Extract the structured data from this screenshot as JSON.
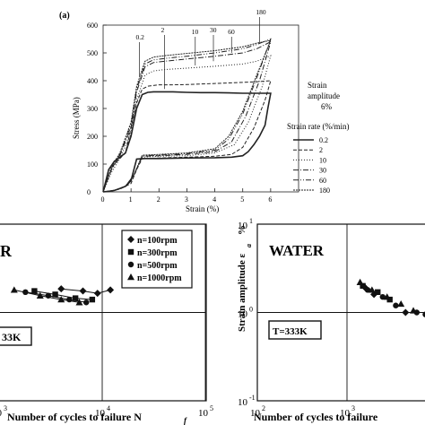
{
  "panel_a_label": "(a)",
  "chart_data": [
    {
      "type": "line",
      "id": "hysteresis",
      "xlabel": "Strain (%)",
      "ylabel": "Stress (MPa)",
      "xlim": [
        0,
        7
      ],
      "ylim": [
        0,
        600
      ],
      "xticks": [
        0,
        1,
        2,
        3,
        4,
        5,
        6
      ],
      "yticks": [
        0,
        100,
        200,
        300,
        400,
        500,
        600
      ],
      "annotation_lines": [
        "Strain",
        "amplitude",
        "6%"
      ],
      "legend_title": "Strain rate (%/min)",
      "legend_position": "right",
      "top_labels": [
        "0.2",
        "2",
        "10",
        "30",
        "60",
        "180"
      ],
      "series": [
        {
          "name": "0.2",
          "dash": "",
          "width": 1.6,
          "x": [
            0,
            0.1,
            0.2,
            0.4,
            0.6,
            0.8,
            1.0,
            1.2,
            1.4,
            1.6,
            1.8,
            2.0,
            2.5,
            3.0,
            3.5,
            4.0,
            4.5,
            5.0,
            5.5,
            6.0,
            5.9,
            5.8,
            5.6,
            5.4,
            5.2,
            5.0,
            4.6,
            4.0,
            3.0,
            2.0,
            1.5,
            1.2,
            1.1,
            1.0,
            0.8,
            0.6,
            0.4,
            0.2,
            0.1,
            0
          ],
          "y": [
            0,
            40,
            80,
            110,
            125,
            140,
            200,
            300,
            350,
            358,
            360,
            360,
            360,
            358,
            357,
            357,
            356,
            355,
            355,
            355,
            300,
            240,
            200,
            170,
            145,
            130,
            125,
            123,
            122,
            120,
            120,
            118,
            80,
            40,
            20,
            12,
            5,
            2,
            1,
            0
          ]
        },
        {
          "name": "2",
          "dash": "4,2",
          "width": 1,
          "x": [
            0,
            0.2,
            0.4,
            0.6,
            0.8,
            1.0,
            1.2,
            1.4,
            1.6,
            2.0,
            2.5,
            3.0,
            3.5,
            4.0,
            4.5,
            5.0,
            5.5,
            6.0,
            5.8,
            5.4,
            5.0,
            4.6,
            4.0,
            3.0,
            2.0,
            1.4,
            1.2,
            1.0,
            0.6,
            0.2,
            0
          ],
          "y": [
            0,
            60,
            100,
            120,
            140,
            230,
            320,
            370,
            380,
            385,
            385,
            386,
            388,
            390,
            392,
            394,
            396,
            400,
            330,
            230,
            160,
            135,
            128,
            125,
            122,
            120,
            80,
            30,
            10,
            2,
            0
          ]
        },
        {
          "name": "10",
          "dash": "1,2",
          "width": 1,
          "x": [
            0,
            0.3,
            0.6,
            1.0,
            1.2,
            1.5,
            1.8,
            2.2,
            3.0,
            4.0,
            5.0,
            5.5,
            6.0,
            5.7,
            5.2,
            4.7,
            4.0,
            3.0,
            2.0,
            1.4,
            1.1,
            0.8,
            0.4,
            0
          ],
          "y": [
            0,
            70,
            120,
            210,
            330,
            420,
            435,
            440,
            445,
            452,
            460,
            470,
            490,
            380,
            250,
            170,
            140,
            130,
            128,
            125,
            60,
            20,
            5,
            0
          ]
        },
        {
          "name": "30",
          "dash": "6,2,1,2",
          "width": 1,
          "x": [
            0,
            0.3,
            0.6,
            1.0,
            1.2,
            1.5,
            1.8,
            2.2,
            3.0,
            4.0,
            5.0,
            5.5,
            6.0,
            5.6,
            5.1,
            4.6,
            4.0,
            3.0,
            2.0,
            1.4,
            1.1,
            0.8,
            0.4,
            0
          ],
          "y": [
            0,
            80,
            130,
            230,
            360,
            450,
            465,
            470,
            478,
            488,
            500,
            515,
            540,
            400,
            270,
            180,
            145,
            135,
            130,
            128,
            60,
            20,
            5,
            0
          ]
        },
        {
          "name": "60",
          "dash": "6,2,1,2,1,2",
          "width": 1,
          "x": [
            0,
            0.3,
            0.6,
            1.0,
            1.2,
            1.5,
            1.8,
            2.2,
            3.0,
            4.0,
            5.0,
            5.5,
            6.0,
            5.5,
            5.0,
            4.5,
            4.0,
            3.0,
            2.0,
            1.4,
            1.1,
            0.8,
            0.4,
            0
          ],
          "y": [
            0,
            85,
            135,
            240,
            370,
            460,
            475,
            480,
            488,
            500,
            515,
            530,
            550,
            410,
            280,
            190,
            150,
            138,
            132,
            130,
            60,
            20,
            5,
            0
          ]
        },
        {
          "name": "180",
          "dash": "2,1",
          "width": 1,
          "x": [
            0,
            0.3,
            0.6,
            1.0,
            1.2,
            1.5,
            1.8,
            2.2,
            3.0,
            4.0,
            5.0,
            5.5,
            6.0,
            5.5,
            5.0,
            4.5,
            4.0,
            3.0,
            2.0,
            1.4,
            1.1,
            0.8,
            0.4,
            0
          ],
          "y": [
            0,
            90,
            140,
            250,
            380,
            470,
            485,
            490,
            498,
            508,
            522,
            535,
            545,
            420,
            290,
            200,
            155,
            140,
            135,
            132,
            60,
            20,
            5,
            0
          ]
        }
      ]
    },
    {
      "type": "scatter",
      "id": "sn_rpm",
      "xlabel": "Number of cycles to failure N",
      "xlabel_sub": "f",
      "xscale": "log",
      "xlim": [
        1000,
        100000
      ],
      "yscale": "log",
      "ylim": [
        0.1,
        10
      ],
      "xtick_base": "10",
      "xtick_exps": [
        "3",
        "4",
        "5"
      ],
      "corner_text": "R",
      "box_label": "33K",
      "legend_position": "top-right",
      "series": [
        {
          "name": "n=100rpm",
          "marker": "diamond",
          "x": [
            4000,
            6500,
            9000,
            12000
          ],
          "y": [
            1.85,
            1.75,
            1.65,
            1.8
          ]
        },
        {
          "name": "n=300rpm",
          "marker": "square",
          "x": [
            2200,
            3500,
            5500,
            8000
          ],
          "y": [
            1.75,
            1.6,
            1.45,
            1.4
          ]
        },
        {
          "name": "n=500rpm",
          "marker": "circle",
          "x": [
            1800,
            3000,
            4800,
            7000
          ],
          "y": [
            1.7,
            1.55,
            1.4,
            1.3
          ]
        },
        {
          "name": "n=1000rpm",
          "marker": "triangle",
          "x": [
            1400,
            2500,
            4000,
            6000
          ],
          "y": [
            1.8,
            1.55,
            1.4,
            1.3
          ]
        }
      ]
    },
    {
      "type": "scatter",
      "id": "sn_water",
      "xlabel": "Number of cycles to failure",
      "ylabel": "Strain amplitude ε",
      "ylabel_sub": "a",
      "ylabel_unit": "%",
      "title": "WATER",
      "box_label": "T=333K",
      "xscale": "log",
      "xlim": [
        100,
        10000
      ],
      "yscale": "log",
      "ylim": [
        0.1,
        10
      ],
      "xtick_base": "10",
      "xtick_exps": [
        "2",
        "3"
      ],
      "ytick_base": "10",
      "ytick_exps": [
        "-1",
        "0",
        "1"
      ],
      "series": [
        {
          "name": "diamond",
          "marker": "diamond",
          "x": [
            1600,
            2000,
            4500
          ],
          "y": [
            1.9,
            1.6,
            1.0
          ]
        },
        {
          "name": "square",
          "marker": "square",
          "x": [
            1500,
            2200,
            3000
          ],
          "y": [
            2.0,
            1.7,
            1.4
          ]
        },
        {
          "name": "circle",
          "marker": "circle",
          "x": [
            1700,
            2500,
            3500,
            6000,
            7500
          ],
          "y": [
            1.8,
            1.5,
            1.2,
            1.0,
            0.95
          ]
        },
        {
          "name": "triangle",
          "marker": "triangle",
          "x": [
            1400,
            1900,
            2800,
            4000,
            5500
          ],
          "y": [
            2.2,
            1.8,
            1.5,
            1.25,
            1.05
          ]
        }
      ]
    }
  ]
}
